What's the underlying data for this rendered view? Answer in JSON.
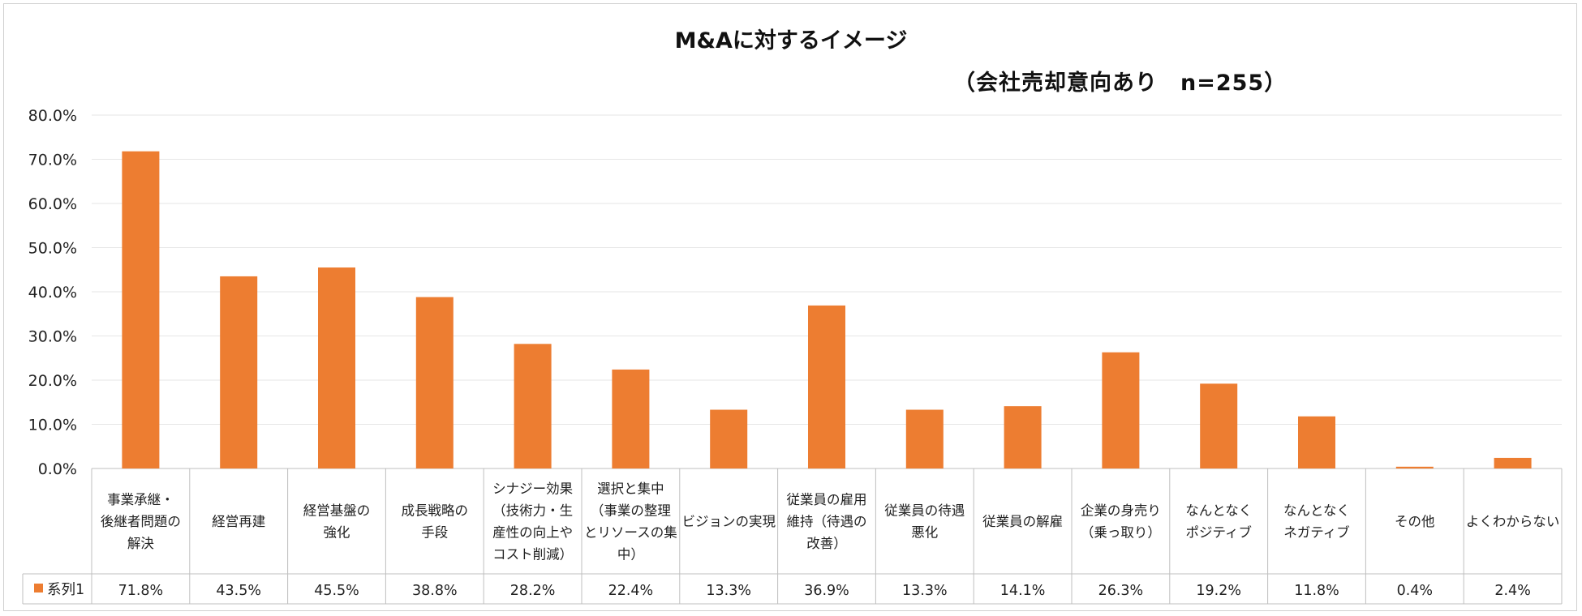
{
  "chart_data": {
    "type": "bar",
    "title": "M&Aに対するイメージ",
    "subtitle": "（会社売却意向あり　n=255）",
    "ylim": [
      0,
      80
    ],
    "ytick_labels": [
      "0.0%",
      "10.0%",
      "20.0%",
      "30.0%",
      "40.0%",
      "50.0%",
      "60.0%",
      "70.0%",
      "80.0%"
    ],
    "ytick_values": [
      0,
      10,
      20,
      30,
      40,
      50,
      60,
      70,
      80
    ],
    "grid": true,
    "legend": "table-left",
    "categories": [
      [
        "事業承継・",
        "後継者問題の",
        "解決"
      ],
      [
        "経営再建"
      ],
      [
        "経営基盤の",
        "強化"
      ],
      [
        "成長戦略の",
        "手段"
      ],
      [
        "シナジー効果",
        "（技術力・生",
        "産性の向上や",
        "コスト削減）"
      ],
      [
        "選択と集中",
        "（事業の整理",
        "とリソースの集",
        "中）"
      ],
      [
        "ビジョンの実現"
      ],
      [
        "従業員の雇用",
        "維持（待遇の",
        "改善）"
      ],
      [
        "従業員の待遇",
        "悪化"
      ],
      [
        "従業員の解雇"
      ],
      [
        "企業の身売り",
        "（乗っ取り）"
      ],
      [
        "なんとなく",
        "ポジティブ"
      ],
      [
        "なんとなく",
        "ネガティブ"
      ],
      [
        "その他"
      ],
      [
        "よくわからない"
      ]
    ],
    "series": [
      {
        "name": "系列1",
        "color": "#ed7d31",
        "values": [
          71.8,
          43.5,
          45.5,
          38.8,
          28.2,
          22.4,
          13.3,
          36.9,
          13.3,
          14.1,
          26.3,
          19.2,
          11.8,
          0.4,
          2.4
        ],
        "value_labels": [
          "71.8%",
          "43.5%",
          "45.5%",
          "38.8%",
          "28.2%",
          "22.4%",
          "13.3%",
          "36.9%",
          "13.3%",
          "14.1%",
          "26.3%",
          "19.2%",
          "11.8%",
          "0.4%",
          "2.4%"
        ]
      }
    ]
  }
}
